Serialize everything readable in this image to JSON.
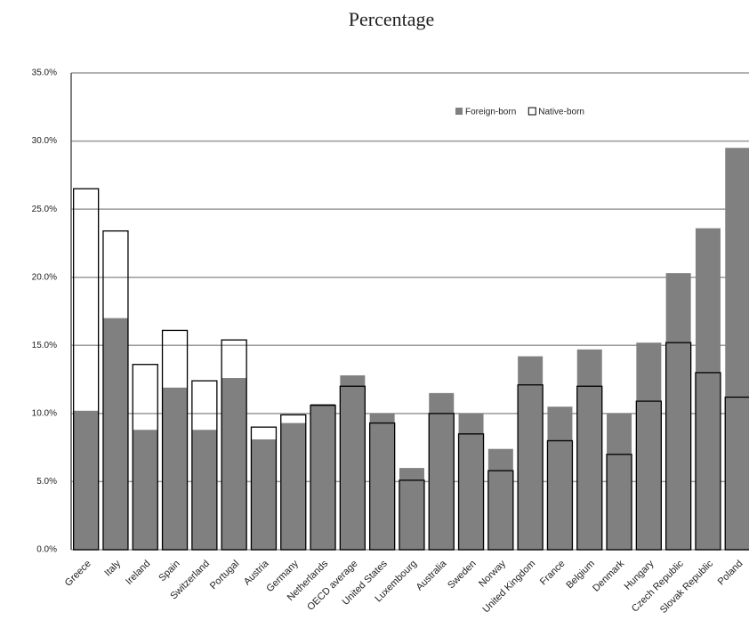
{
  "chart_data": {
    "type": "bar",
    "title": "Percentage",
    "categories": [
      "Greece",
      "Italy",
      "Ireland",
      "Spain",
      "Switzerland",
      "Portugal",
      "Austria",
      "Germany",
      "Netherlands",
      "OECD average",
      "United States",
      "Luxembourg",
      "Australia",
      "Sweden",
      "Norway",
      "United Kingdom",
      "France",
      "Belgium",
      "Denmark",
      "Hungary",
      "Czech Republic",
      "Slovak Republic",
      "Poland"
    ],
    "series": [
      {
        "name": "Foreign-born",
        "color": "#808080",
        "values": [
          10.2,
          17.0,
          8.8,
          11.9,
          8.8,
          12.6,
          8.1,
          9.3,
          10.7,
          12.8,
          10.0,
          6.0,
          11.5,
          10.0,
          7.4,
          14.2,
          10.5,
          14.7,
          10.0,
          15.2,
          20.3,
          23.6,
          29.5
        ]
      },
      {
        "name": "Native-born",
        "color": "#ffffff",
        "values": [
          26.5,
          23.4,
          13.6,
          16.1,
          12.4,
          15.4,
          9.0,
          9.9,
          10.6,
          12.0,
          9.3,
          5.1,
          10.0,
          8.5,
          5.8,
          12.1,
          8.0,
          12.0,
          7.0,
          10.9,
          15.2,
          13.0,
          11.2
        ]
      }
    ],
    "ylim": [
      0,
      35
    ],
    "yticks": [
      {
        "value": 0,
        "label": "0.0%"
      },
      {
        "value": 5,
        "label": "5.0%"
      },
      {
        "value": 10,
        "label": "10.0%"
      },
      {
        "value": 15,
        "label": "15.0%"
      },
      {
        "value": 20,
        "label": "20.0%"
      },
      {
        "value": 25,
        "label": "25.0%"
      },
      {
        "value": 30,
        "label": "30.0%"
      },
      {
        "value": 35,
        "label": "35.0%"
      }
    ],
    "grid": true
  }
}
